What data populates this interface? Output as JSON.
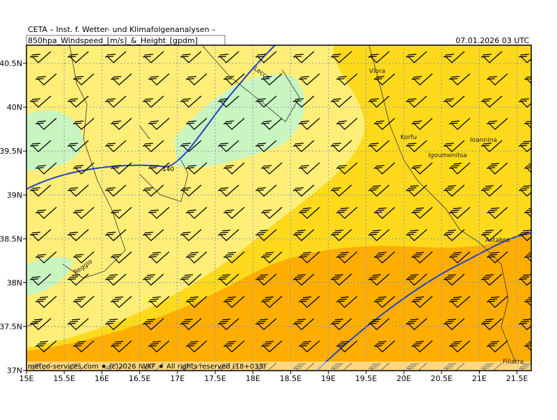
{
  "header": {
    "institute": "CETA – Inst. f. Wetter- und Klimafolgenanalysen –",
    "product": "850hpa_Windspeed_[m/s]_&_Height_[gpdm]",
    "date": "07.01.2026 03 UTC"
  },
  "map": {
    "xticks": [
      "15E",
      "15.5E",
      "16E",
      "16.5E",
      "17E",
      "17.5E",
      "18E",
      "18.5E",
      "19E",
      "19.5E",
      "20E",
      "20.5E",
      "21E",
      "21.5E"
    ],
    "yticks": [
      "40.5N",
      "40N",
      "39.5N",
      "39N",
      "38.5N",
      "38N",
      "37.5N",
      "37N"
    ],
    "places": [
      "Lecce",
      "Vlora",
      "Korfu",
      "Igoumenitsa",
      "Ioannina",
      "Reggio",
      "Astakos",
      "Filiatra"
    ],
    "contour_label": "140",
    "footer": "meteo-services.com ★ (c)2026 IWKF ★ All rights reserved (18+033)"
  }
}
